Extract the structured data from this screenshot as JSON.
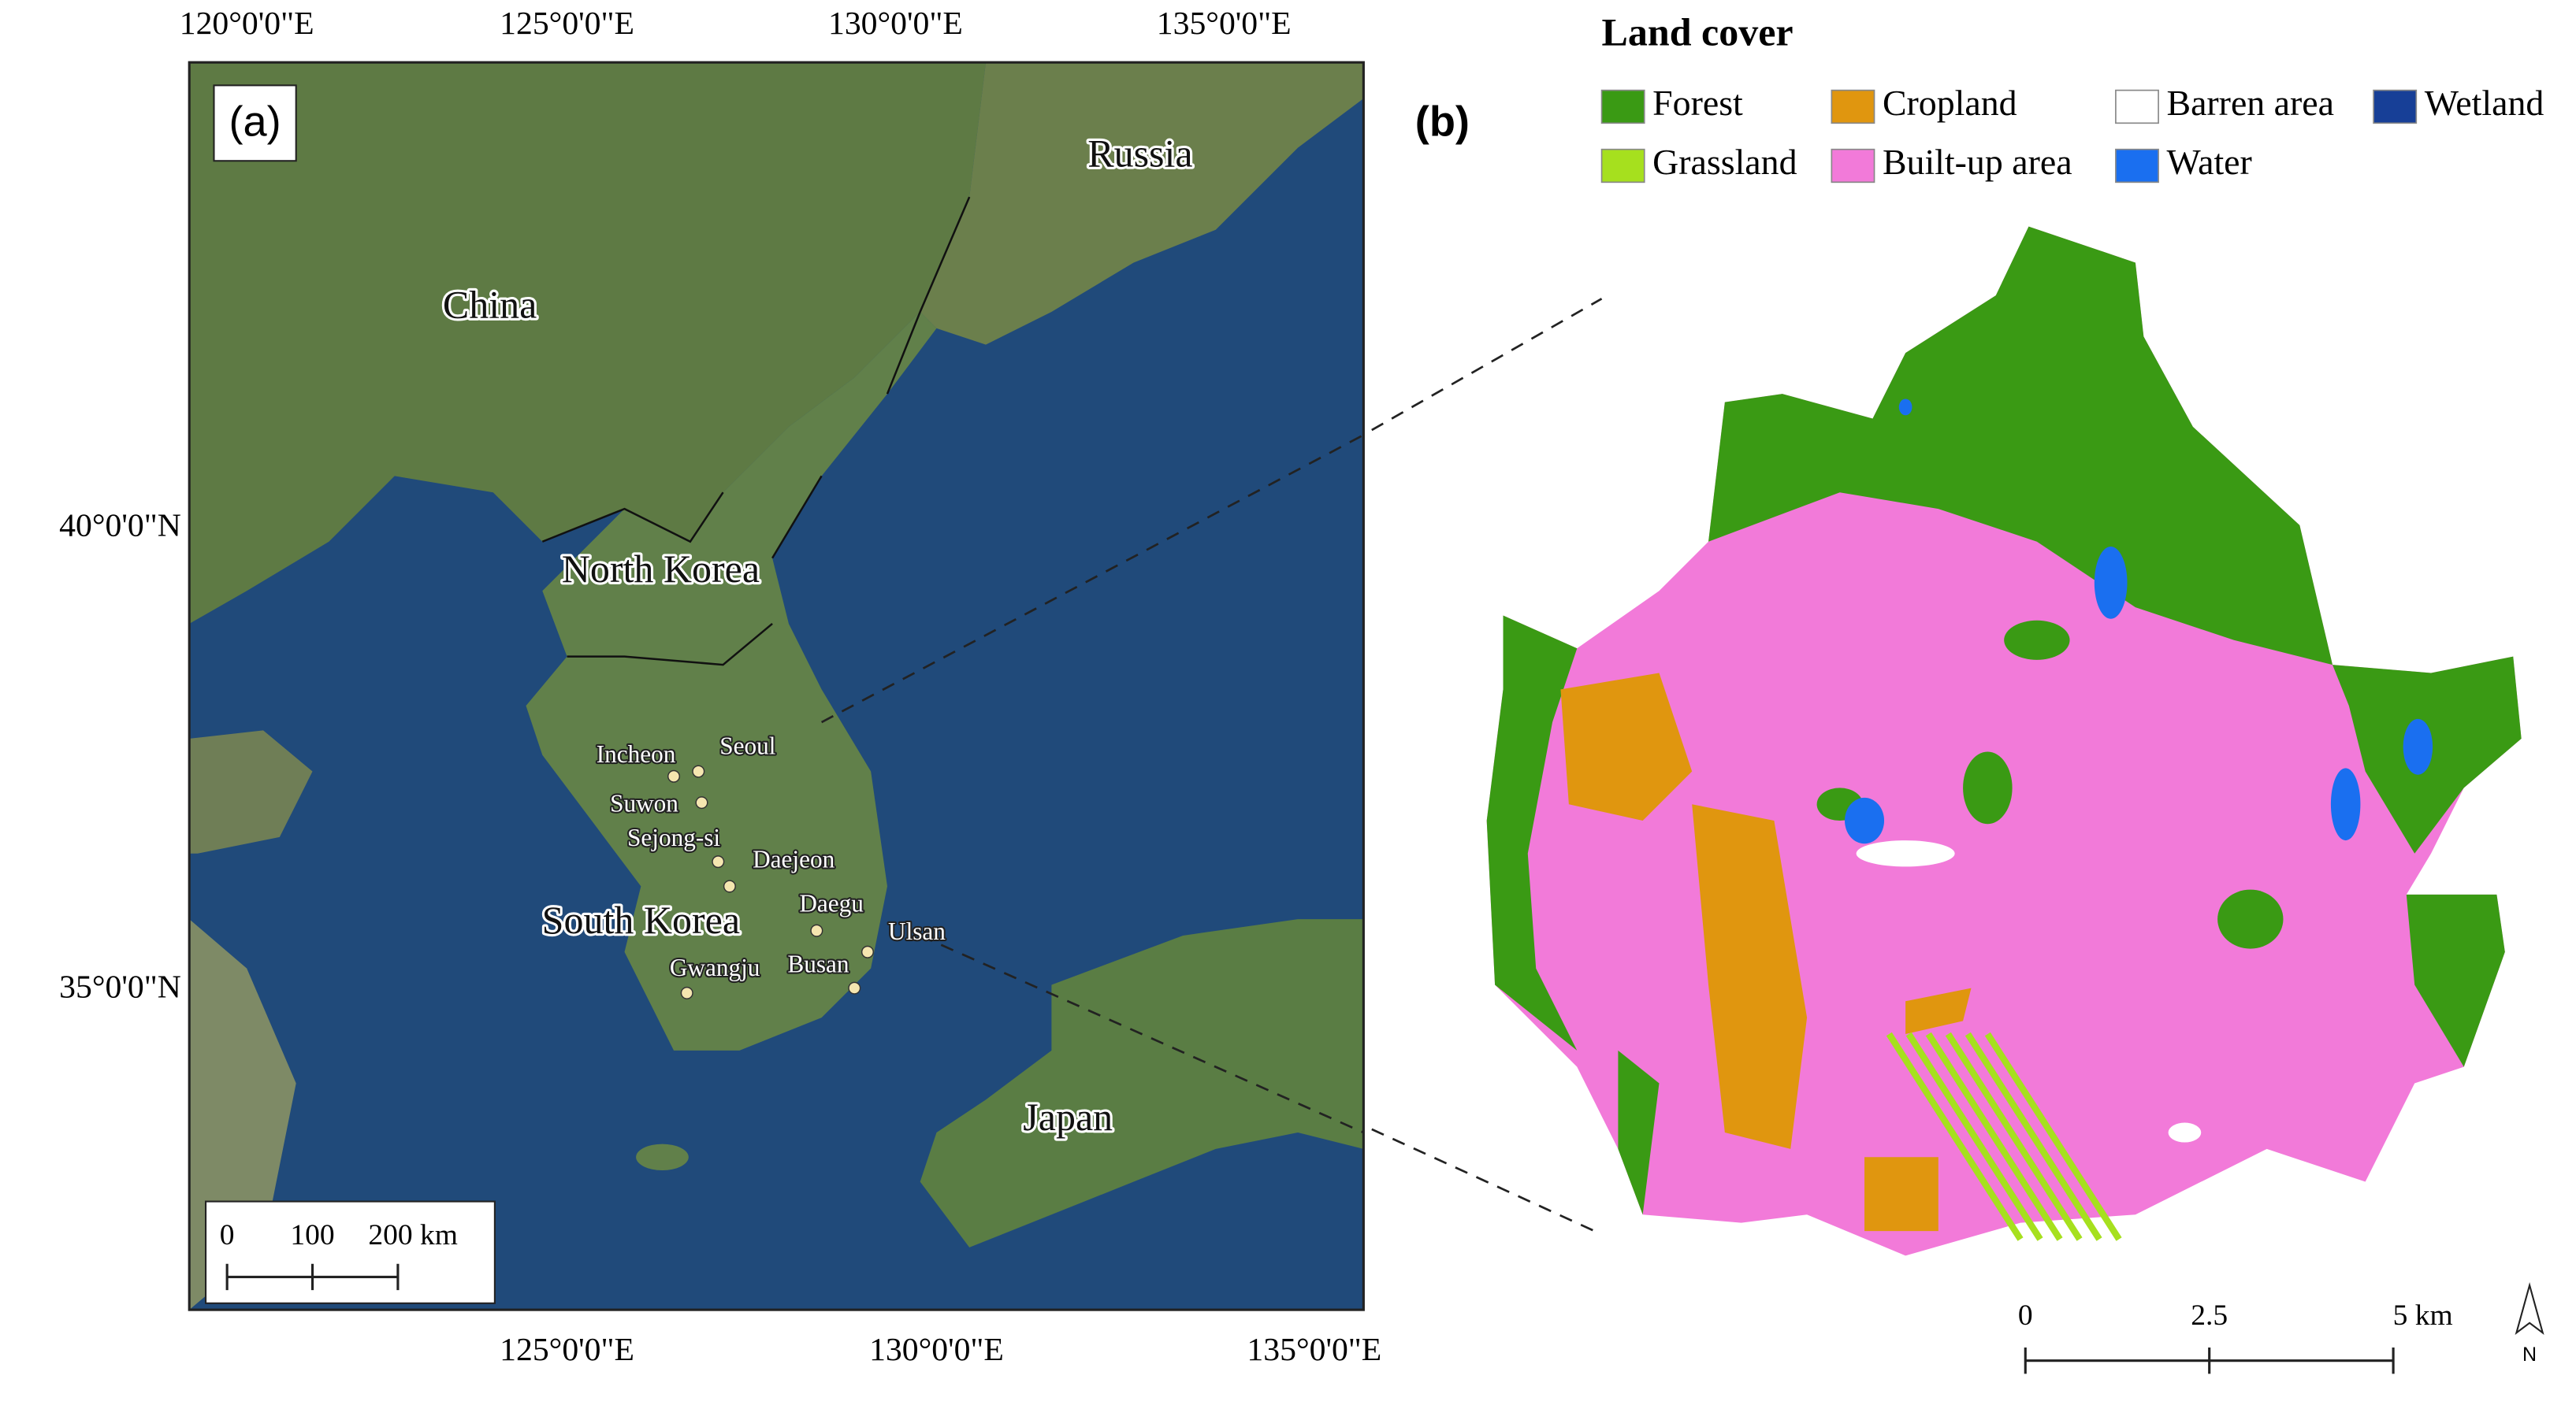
{
  "panel_a": {
    "label": "(a)",
    "top_labels": [
      "120°0'0\"E",
      "125°0'0\"E",
      "130°0'0\"E",
      "135°0'0\"E"
    ],
    "bottom_labels": [
      "125°0'0\"E",
      "130°0'0\"E",
      "135°0'0\"E"
    ],
    "left_labels": [
      "40°0'0\"N",
      "35°0'0\"N"
    ],
    "countries": [
      "Russia",
      "China",
      "North Korea",
      "South Korea",
      "Japan"
    ],
    "cities": [
      "Seoul",
      "Incheon",
      "Suwon",
      "Sejong-si",
      "Daejeon",
      "Daegu",
      "Ulsan",
      "Busan",
      "Gwangju"
    ],
    "scale": [
      "0",
      "100",
      "200 km"
    ]
  },
  "panel_b": {
    "label": "(b)",
    "legend": {
      "title": "Land cover",
      "items": [
        {
          "name": "Forest",
          "color": "#3a9a14"
        },
        {
          "name": "Cropland",
          "color": "#e0960f"
        },
        {
          "name": "Barren area",
          "color": "#ffffff"
        },
        {
          "name": "Wetland",
          "color": "#173f97"
        },
        {
          "name": "Grassland",
          "color": "#a6e01e"
        },
        {
          "name": "Built-up area",
          "color": "#f27ad9"
        },
        {
          "name": "Water",
          "color": "#1a6ff0"
        }
      ]
    },
    "scale": [
      "0",
      "2.5",
      "5 km"
    ],
    "north": "N"
  }
}
